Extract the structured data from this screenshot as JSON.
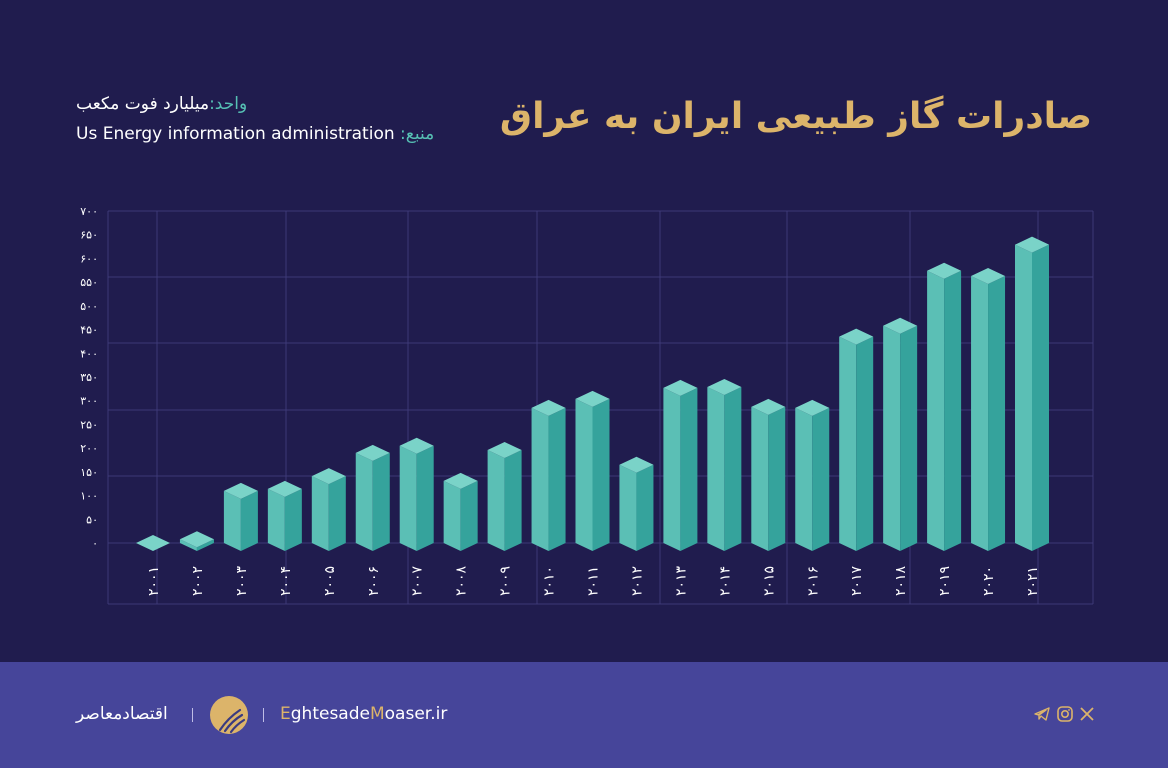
{
  "title": "صادرات گاز طبیعی ایران به عراق",
  "unit_label": "واحد:",
  "unit_value": "میلیارد فوت مکعب",
  "source_label": "منبع:",
  "source_value": "Us Energy  information administration",
  "colors": {
    "background": "#201c4e",
    "bar_front": "#5bbfb5",
    "bar_side": "#35a39c",
    "bar_top": "#7ad3c8",
    "title": "#dcb46a",
    "footer": "#46459a"
  },
  "chart_data": {
    "type": "bar",
    "style": "3d-isometric",
    "categories": [
      "۲۰۰۱",
      "۲۰۰۲",
      "۲۰۰۳",
      "۲۰۰۴",
      "۲۰۰۵",
      "۲۰۰۶",
      "۲۰۰۷",
      "۲۰۰۸",
      "۲۰۰۹",
      "۲۰۱۰",
      "۲۰۱۱",
      "۲۰۱۲",
      "۲۰۱۳",
      "۲۰۱۴",
      "۲۰۱۵",
      "۲۰۱۶",
      "۲۰۱۷",
      "۲۰۱۸",
      "۲۰۱۹",
      "۲۰۲۰",
      "۲۰۲۱"
    ],
    "values": [
      0,
      8,
      110,
      114,
      141,
      190,
      205,
      131,
      196,
      285,
      304,
      165,
      327,
      329,
      287,
      285,
      435,
      458,
      574,
      563,
      629
    ],
    "ylim": [
      0,
      700
    ],
    "yticks": [
      "۰",
      "۵۰",
      "۱۰۰",
      "۱۵۰",
      "۲۰۰",
      "۲۵۰",
      "۳۰۰",
      "۳۵۰",
      "۴۰۰",
      "۴۵۰",
      "۵۰۰",
      "۵۵۰",
      "۶۰۰",
      "۶۵۰",
      "۷۰۰"
    ],
    "grid": true
  },
  "footer": {
    "brand_fa": "اقتصادمعاصر",
    "site_parts": [
      "E",
      "ghtesade",
      "M",
      "oaser.ir"
    ],
    "social_icons": [
      "telegram-icon",
      "instagram-icon",
      "x-icon"
    ]
  }
}
